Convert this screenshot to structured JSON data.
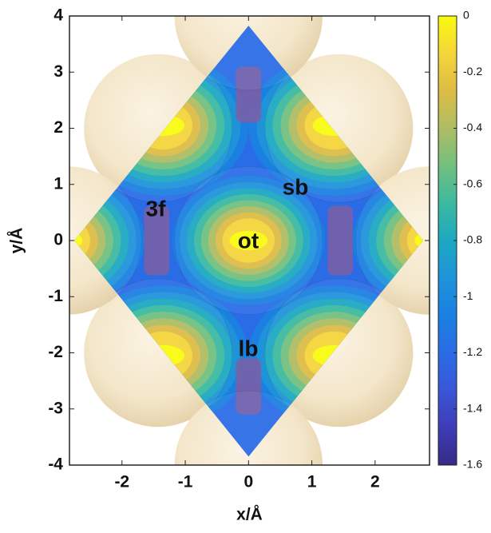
{
  "chart_data": {
    "type": "contour",
    "xlabel": "x/Å",
    "ylabel": "y/Å",
    "xlim": [
      -2.83,
      2.86
    ],
    "xticks": [
      -2,
      -1,
      0,
      1,
      2
    ],
    "ylim": [
      -4,
      4
    ],
    "yticks": [
      -4,
      -3,
      -2,
      -1,
      0,
      1,
      2,
      3,
      4
    ],
    "annotations": [
      "3f",
      "sb",
      "ot",
      "lb"
    ],
    "colorbar": {
      "lim": [
        -1.6,
        0
      ],
      "ticks": [
        0,
        -0.2,
        -0.4,
        -0.6,
        -0.8,
        -1,
        -1.2,
        -1.4,
        -1.6
      ]
    },
    "colormap": [
      "#f9fb0e",
      "#f5d53a",
      "#dcbc45",
      "#aebd63",
      "#72c07f",
      "#3cb9a0",
      "#1ca8c1",
      "#1e93d9",
      "#1b80e2",
      "#2a6ce6",
      "#3a56d8",
      "#3e3db6",
      "#352a87"
    ]
  }
}
